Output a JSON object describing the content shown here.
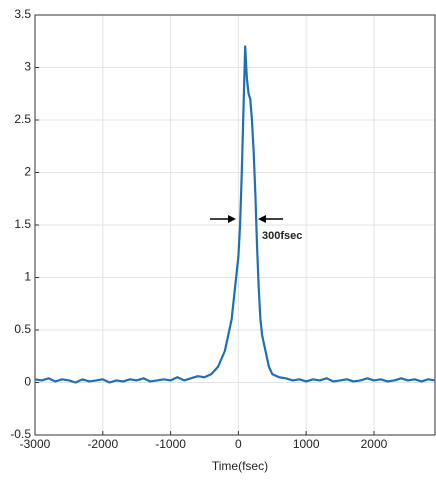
{
  "chart_data": {
    "type": "line",
    "xlabel": "Time(fsec)",
    "annotation": "300fsec",
    "x": [
      -3000,
      -2900,
      -2800,
      -2700,
      -2600,
      -2500,
      -2400,
      -2300,
      -2200,
      -2100,
      -2000,
      -1900,
      -1800,
      -1700,
      -1600,
      -1500,
      -1400,
      -1300,
      -1200,
      -1100,
      -1000,
      -900,
      -800,
      -700,
      -600,
      -500,
      -400,
      -300,
      -200,
      -100,
      -50,
      0,
      25,
      50,
      75,
      100,
      125,
      150,
      175,
      200,
      225,
      250,
      275,
      300,
      325,
      350,
      400,
      450,
      500,
      600,
      700,
      800,
      900,
      1000,
      1100,
      1200,
      1300,
      1400,
      1500,
      1600,
      1700,
      1800,
      1900,
      2000,
      2100,
      2200,
      2300,
      2400,
      2500,
      2600,
      2700,
      2800,
      2900
    ],
    "series": [
      {
        "color": "#1f6fb7",
        "values": [
          0.03,
          0.02,
          0.04,
          0.01,
          0.03,
          0.02,
          0.0,
          0.03,
          0.01,
          0.02,
          0.03,
          0.0,
          0.02,
          0.01,
          0.03,
          0.02,
          0.04,
          0.01,
          0.02,
          0.03,
          0.02,
          0.05,
          0.02,
          0.04,
          0.06,
          0.05,
          0.08,
          0.15,
          0.3,
          0.6,
          0.9,
          1.2,
          1.5,
          2.0,
          2.6,
          3.2,
          2.9,
          2.75,
          2.7,
          2.5,
          2.2,
          1.8,
          1.3,
          0.9,
          0.6,
          0.45,
          0.3,
          0.15,
          0.08,
          0.05,
          0.04,
          0.02,
          0.03,
          0.01,
          0.03,
          0.02,
          0.04,
          0.01,
          0.02,
          0.03,
          0.01,
          0.02,
          0.04,
          0.02,
          0.03,
          0.01,
          0.02,
          0.04,
          0.02,
          0.03,
          0.01,
          0.03,
          0.02
        ]
      }
    ],
    "xlim": [
      -3000,
      2900
    ],
    "ylim": [
      -0.5,
      3.5
    ],
    "xticks": [
      -3000,
      -2000,
      -1000,
      0,
      1000,
      2000
    ],
    "yticks": [
      -0.5,
      0,
      0.5,
      1,
      1.5,
      2,
      2.5,
      3,
      3.5
    ],
    "grid": true
  }
}
